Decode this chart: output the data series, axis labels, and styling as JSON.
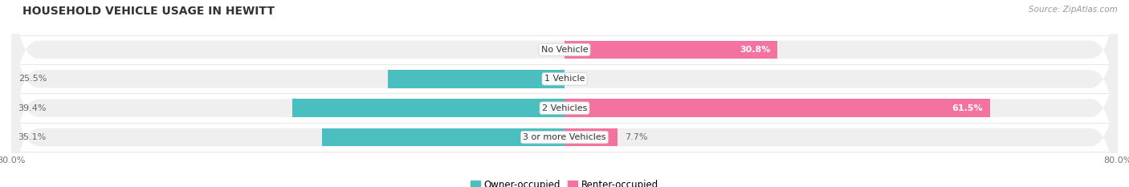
{
  "title": "HOUSEHOLD VEHICLE USAGE IN HEWITT",
  "source": "Source: ZipAtlas.com",
  "categories": [
    "No Vehicle",
    "1 Vehicle",
    "2 Vehicles",
    "3 or more Vehicles"
  ],
  "owner_values": [
    0.0,
    25.5,
    39.4,
    35.1
  ],
  "renter_values": [
    30.8,
    0.0,
    61.5,
    7.7
  ],
  "owner_color": "#4BBFBF",
  "renter_color": "#F472A0",
  "renter_color_light": "#F9AECA",
  "bar_bg_color": "#EFEFEF",
  "row_sep_color": "#E0E0E0",
  "label_color": "#666666",
  "title_color": "#333333",
  "source_color": "#999999",
  "x_min": -80,
  "x_max": 80,
  "legend_owner": "Owner-occupied",
  "legend_renter": "Renter-occupied",
  "figsize": [
    14.06,
    2.33
  ],
  "dpi": 100
}
